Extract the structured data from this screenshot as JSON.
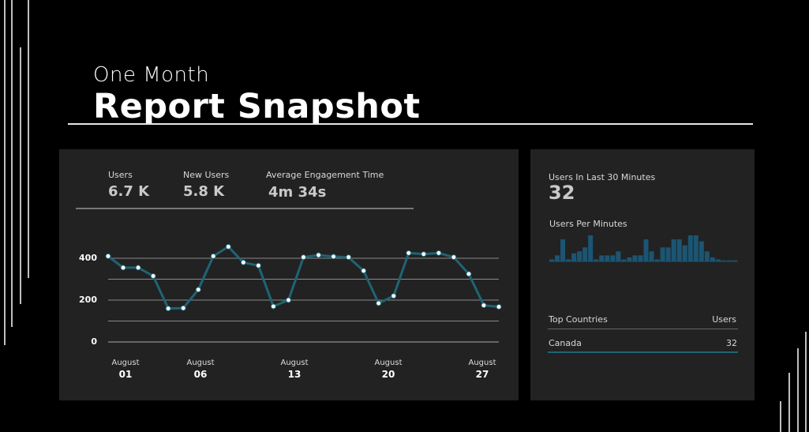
{
  "header": {
    "subtitle": "One Month",
    "title": "Report Snapshot"
  },
  "kpis": [
    {
      "label": "Users",
      "value": "6.7 K"
    },
    {
      "label": "New Users",
      "value": "5.8 K"
    },
    {
      "label": "Average Engagement Time",
      "value": "4m 34s"
    }
  ],
  "chart_data": [
    {
      "type": "line",
      "title": "",
      "xlabel": "",
      "ylabel": "",
      "ylim": [
        0,
        400
      ],
      "y_ticks": [
        "400",
        "200",
        "0"
      ],
      "x_ticks": [
        {
          "month": "August",
          "day": "01"
        },
        {
          "month": "August",
          "day": "06"
        },
        {
          "month": "August",
          "day": "13"
        },
        {
          "month": "August",
          "day": "20"
        },
        {
          "month": "August",
          "day": "27"
        }
      ],
      "grid": true,
      "line_color": "#1f6474",
      "series": [
        {
          "values": [
            410,
            355,
            355,
            315,
            160,
            162,
            250,
            410,
            455,
            380,
            365,
            170,
            200,
            405,
            415,
            408,
            405,
            340,
            185,
            220,
            425,
            420,
            425,
            405,
            325,
            175,
            168
          ]
        }
      ]
    },
    {
      "type": "bar",
      "title": "Users Per Minutes",
      "bar_color": "#1b5573",
      "values": [
        1,
        3,
        11,
        1,
        4,
        5,
        7,
        13,
        1,
        3,
        3,
        3,
        5,
        1,
        2,
        3,
        3,
        11,
        5,
        1,
        7,
        7,
        11,
        11,
        8,
        13,
        13,
        10,
        5,
        2,
        1,
        0.5,
        0.5,
        0.5
      ]
    }
  ],
  "realtime": {
    "label": "Users In Last 30 Minutes",
    "value": "32",
    "per_minute_label": "Users Per Minutes"
  },
  "countries": {
    "header_label": "Top Countries",
    "header_value": "Users",
    "rows": [
      {
        "name": "Canada",
        "value": "32"
      }
    ]
  },
  "colors": {
    "panel": "#222222",
    "accent": "#1f6474"
  }
}
